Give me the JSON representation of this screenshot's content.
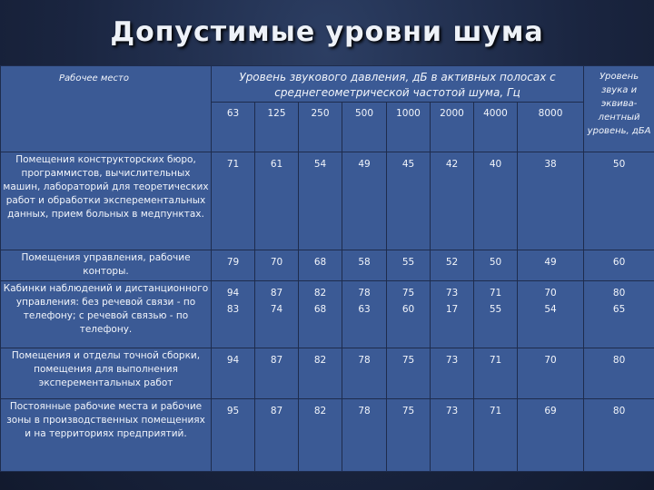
{
  "title": "Допустимые уровни шума",
  "header": {
    "place": "Рабочее место",
    "pressure": "Уровень звукового давления, дБ  в активных полосах с среднегеометрической частотой шума, Гц",
    "level": "Уровень звука и эквива-лентный уровень, дБА",
    "frequencies": [
      "63",
      "125",
      "250",
      "500",
      "1000",
      "2000",
      "4000",
      "8000"
    ]
  },
  "rows": [
    {
      "place": "Помещения конструкторских бюро, программистов, вычислительных машин, лабораторий для теоретических работ и обработки эксперементальных данных, прием больных в медпунктах.",
      "values": [
        "71",
        "61",
        "54",
        "49",
        "45",
        "42",
        "40",
        "38"
      ],
      "level": "50"
    },
    {
      "place": "Помещения управления, рабочие конторы.",
      "values": [
        "79",
        "70",
        "68",
        "58",
        "55",
        "52",
        "50",
        "49"
      ],
      "level": "60"
    },
    {
      "place": "Кабинки наблюдений и дистанционного управления: без речевой связи - по телефону; с речевой связью - по телефону.",
      "values": [
        "94\n83",
        "87\n74",
        "82\n68",
        "78\n63",
        "75\n60",
        "73\n17",
        "71\n55",
        "70\n54"
      ],
      "level": "80\n65"
    },
    {
      "place": "Помещения и отделы точной сборки, помещения для выполнения эксперементальных работ",
      "values": [
        "94",
        "87",
        "82",
        "78",
        "75",
        "73",
        "71",
        "70"
      ],
      "level": "80"
    },
    {
      "place": "Постоянные рабочие места и рабочие зоны в производственных помещениях и на территориях предприятий.",
      "values": [
        "95",
        "87",
        "82",
        "78",
        "75",
        "73",
        "71",
        "69"
      ],
      "level": "80"
    }
  ]
}
